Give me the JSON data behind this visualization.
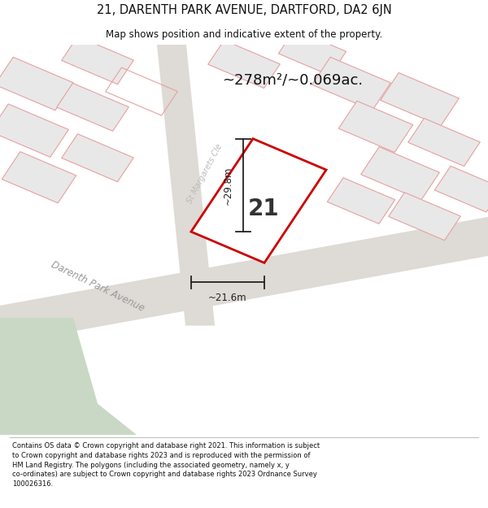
{
  "title": "21, DARENTH PARK AVENUE, DARTFORD, DA2 6JN",
  "subtitle": "Map shows position and indicative extent of the property.",
  "area_text": "~278m²/~0.069ac.",
  "label_21": "21",
  "dim_height": "~29.8m",
  "dim_width": "~21.6m",
  "street_darenth": "Darenth Park Avenue",
  "street_st_margarets": "St Margarets Clé",
  "footer_line1": "Contains OS data © Crown copyright and database right 2021. This information is subject",
  "footer_line2": "to Crown copyright and database rights 2023 and is reproduced with the permission of",
  "footer_line3": "HM Land Registry. The polygons (including the associated geometry, namely x, y",
  "footer_line4": "co-ordinates) are subject to Crown copyright and database rights 2023 Ordnance Survey",
  "footer_line5": "100026316.",
  "map_bg": "#f2f0ee",
  "road_color": "#dedad5",
  "plot_outline_color": "#cc0000",
  "plot_fill_color": "#ffffff",
  "neighbor_outline": "#e8a0a0",
  "neighbor_fill": "#e8e8e8",
  "green_area": "#c8d8c4",
  "dim_color": "#222222",
  "street_color": "#999999",
  "fig_width": 6.0,
  "fig_height": 6.25
}
